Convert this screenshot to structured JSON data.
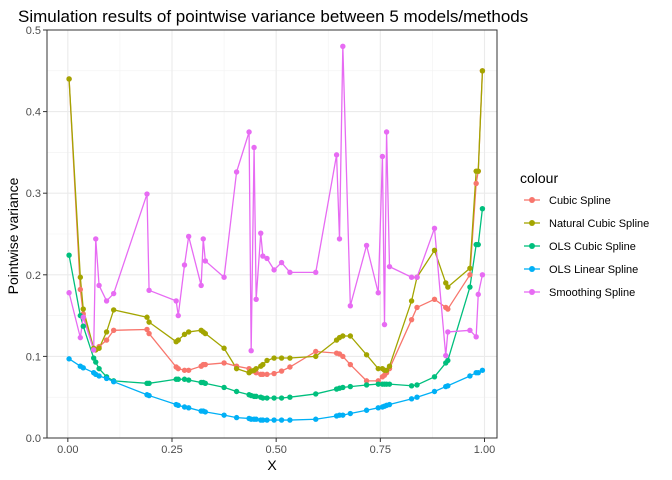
{
  "chart_data": {
    "type": "line",
    "title": "Simulation results of pointwise variance between 5 models/methods",
    "xlabel": "X",
    "ylabel": "Pointwise variance",
    "xlim": [
      -0.05,
      1.03
    ],
    "ylim": [
      0,
      0.5
    ],
    "x_ticks": [
      0.0,
      0.25,
      0.5,
      0.75,
      1.0
    ],
    "x_tick_labels": [
      "0.00",
      "0.25",
      "0.50",
      "0.75",
      "1.00"
    ],
    "y_ticks": [
      0.0,
      0.1,
      0.2,
      0.3,
      0.4,
      0.5
    ],
    "y_tick_labels": [
      "0.0",
      "0.1",
      "0.2",
      "0.3",
      "0.4",
      "0.5"
    ],
    "grid": true,
    "legend": {
      "title": "colour",
      "position": "right"
    },
    "x": [
      0.003,
      0.03,
      0.037,
      0.062,
      0.067,
      0.075,
      0.093,
      0.11,
      0.19,
      0.195,
      0.26,
      0.265,
      0.28,
      0.29,
      0.32,
      0.325,
      0.33,
      0.375,
      0.405,
      0.435,
      0.44,
      0.447,
      0.452,
      0.463,
      0.468,
      0.478,
      0.495,
      0.513,
      0.533,
      0.595,
      0.645,
      0.652,
      0.66,
      0.678,
      0.717,
      0.745,
      0.755,
      0.76,
      0.765,
      0.772,
      0.825,
      0.838,
      0.88,
      0.907,
      0.912,
      0.965,
      0.98,
      0.985,
      0.995
    ],
    "series": [
      {
        "name": "Cubic Spline",
        "color": "#F8766D",
        "values": [
          0.44,
          0.182,
          0.152,
          0.108,
          0.108,
          0.112,
          0.12,
          0.132,
          0.133,
          0.128,
          0.087,
          0.085,
          0.083,
          0.083,
          0.088,
          0.09,
          0.09,
          0.092,
          0.088,
          0.085,
          0.082,
          0.082,
          0.08,
          0.078,
          0.078,
          0.078,
          0.079,
          0.082,
          0.087,
          0.106,
          0.104,
          0.103,
          0.1,
          0.09,
          0.07,
          0.07,
          0.075,
          0.077,
          0.08,
          0.085,
          0.145,
          0.16,
          0.17,
          0.16,
          0.158,
          0.2,
          0.312,
          0.327,
          0.45
        ]
      },
      {
        "name": "Natural Cubic Spline",
        "color": "#A3A500",
        "values": [
          0.44,
          0.197,
          0.158,
          0.11,
          0.108,
          0.11,
          0.13,
          0.157,
          0.148,
          0.142,
          0.118,
          0.12,
          0.127,
          0.13,
          0.132,
          0.13,
          0.128,
          0.11,
          0.085,
          0.08,
          0.082,
          0.083,
          0.085,
          0.088,
          0.09,
          0.095,
          0.098,
          0.098,
          0.098,
          0.1,
          0.12,
          0.123,
          0.125,
          0.125,
          0.102,
          0.085,
          0.085,
          0.083,
          0.083,
          0.088,
          0.168,
          0.197,
          0.23,
          0.19,
          0.185,
          0.208,
          0.327,
          0.327,
          0.45
        ]
      },
      {
        "name": "OLS Cubic Spline",
        "color": "#00BF7D",
        "values": [
          0.224,
          0.15,
          0.137,
          0.098,
          0.093,
          0.085,
          0.075,
          0.07,
          0.067,
          0.067,
          0.072,
          0.072,
          0.072,
          0.071,
          0.068,
          0.068,
          0.067,
          0.062,
          0.057,
          0.053,
          0.052,
          0.051,
          0.051,
          0.05,
          0.049,
          0.049,
          0.049,
          0.049,
          0.05,
          0.054,
          0.06,
          0.061,
          0.062,
          0.063,
          0.065,
          0.066,
          0.066,
          0.066,
          0.066,
          0.066,
          0.064,
          0.065,
          0.075,
          0.092,
          0.095,
          0.185,
          0.237,
          0.237,
          0.281
        ]
      },
      {
        "name": "OLS Linear Spline",
        "color": "#00B0F6",
        "values": [
          0.097,
          0.088,
          0.086,
          0.08,
          0.078,
          0.076,
          0.073,
          0.069,
          0.053,
          0.052,
          0.041,
          0.04,
          0.038,
          0.037,
          0.033,
          0.033,
          0.032,
          0.028,
          0.025,
          0.024,
          0.023,
          0.023,
          0.023,
          0.022,
          0.022,
          0.022,
          0.022,
          0.022,
          0.022,
          0.023,
          0.027,
          0.028,
          0.028,
          0.03,
          0.034,
          0.037,
          0.038,
          0.039,
          0.04,
          0.041,
          0.048,
          0.05,
          0.057,
          0.063,
          0.064,
          0.076,
          0.08,
          0.08,
          0.083
        ]
      },
      {
        "name": "Smoothing Spline",
        "color": "#E76BF3",
        "values": [
          0.178,
          0.123,
          0.148,
          0.108,
          0.244,
          0.187,
          0.168,
          0.177,
          0.299,
          0.181,
          0.168,
          0.15,
          0.212,
          0.247,
          0.187,
          0.244,
          0.217,
          0.197,
          0.326,
          0.375,
          0.107,
          0.356,
          0.17,
          0.251,
          0.223,
          0.22,
          0.206,
          0.215,
          0.203,
          0.203,
          0.347,
          0.244,
          0.48,
          0.162,
          0.236,
          0.178,
          0.345,
          0.139,
          0.375,
          0.21,
          0.197,
          0.197,
          0.257,
          0.101,
          0.13,
          0.132,
          0.124,
          0.176,
          0.2
        ]
      }
    ]
  }
}
